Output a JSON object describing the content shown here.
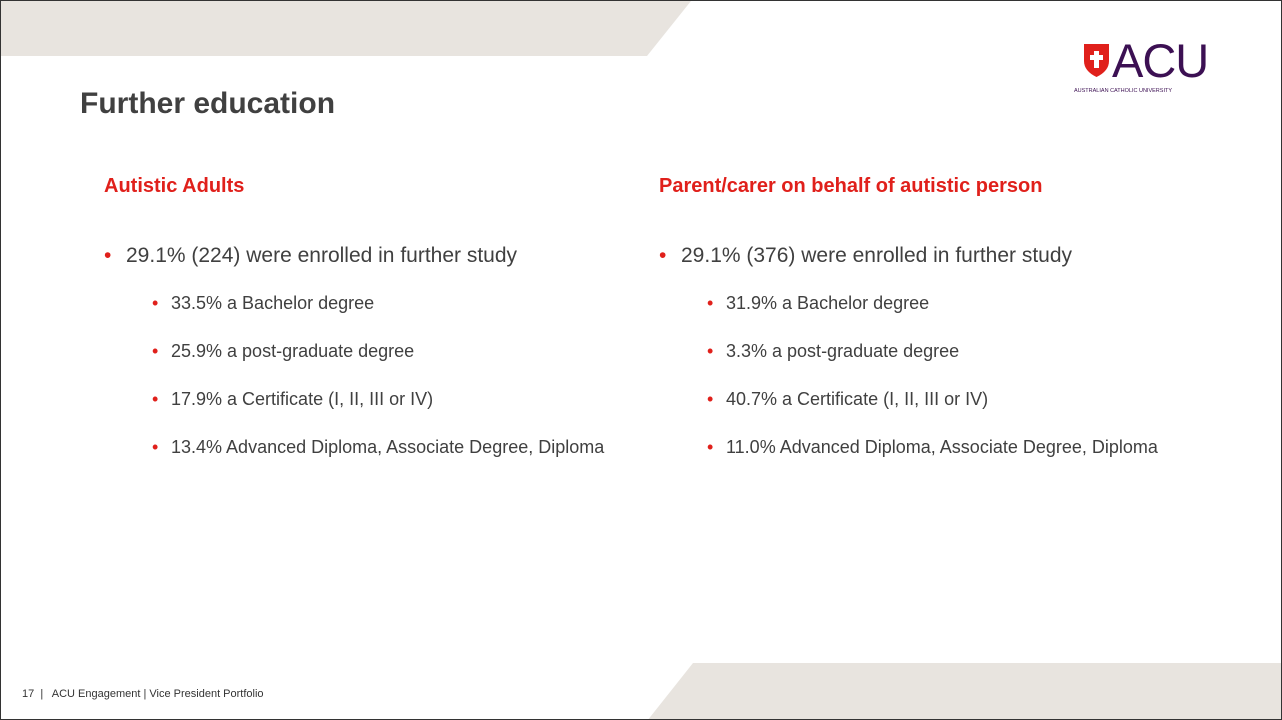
{
  "header": {
    "title": "Further education",
    "logo": {
      "mark": "ACU",
      "name": "AUSTRALIAN CATHOLIC UNIVERSITY"
    }
  },
  "columns": [
    {
      "heading": "Autistic Adults",
      "bullets": [
        {
          "text": "29.1% (224) were enrolled in further study",
          "sub_items": [
            "33.5% a Bachelor degree",
            "25.9% a post-graduate degree",
            "17.9% a Certificate (I, II, III or IV)",
            "13.4% Advanced Diploma, Associate Degree, Diploma"
          ]
        }
      ]
    },
    {
      "heading": "Parent/carer on behalf of autistic person",
      "bullets": [
        {
          "text": "29.1% (376) were enrolled in further study",
          "sub_items": [
            "31.9% a Bachelor degree",
            "3.3% a post-graduate degree",
            "40.7% a Certificate (I, II, III or IV)",
            "11.0% Advanced Diploma, Associate Degree, Diploma"
          ]
        }
      ]
    }
  ],
  "footer": {
    "text": "17  |   ACU Engagement | Vice President Portfolio"
  }
}
